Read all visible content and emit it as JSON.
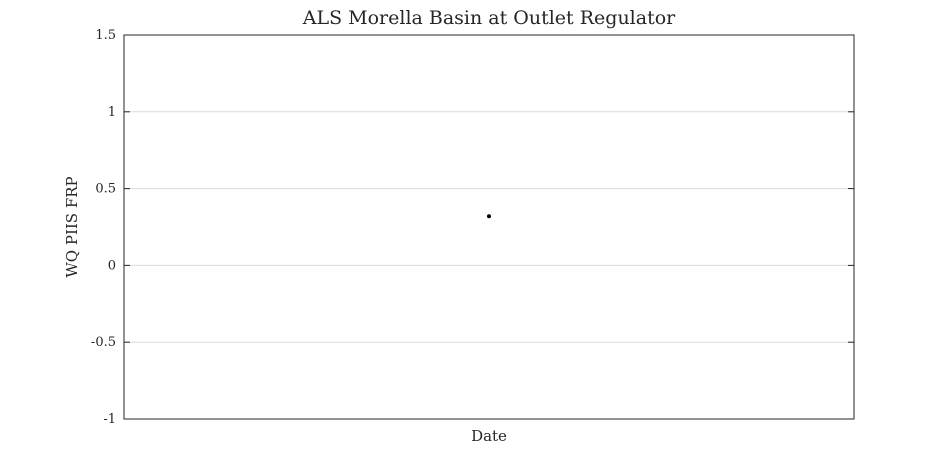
{
  "chart_data": {
    "type": "scatter",
    "title": "ALS Morella Basin at Outlet Regulator",
    "xlabel": "Date",
    "ylabel": "WQ PIIS FRP",
    "ylim": [
      -1,
      1.5
    ],
    "yticks": [
      -1,
      -0.5,
      0,
      0.5,
      1,
      1.5
    ],
    "ytick_labels": [
      "-1",
      "-0.5",
      "0",
      "0.5",
      "1",
      "1.5"
    ],
    "grid": true,
    "marker_color": "#000000",
    "series": [
      {
        "x": [
          0.5
        ],
        "y": [
          0.32
        ]
      }
    ]
  }
}
